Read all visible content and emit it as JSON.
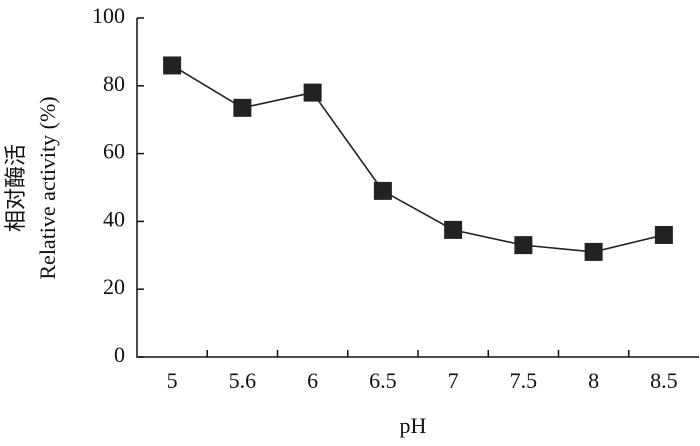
{
  "chart_data": {
    "type": "line",
    "xlabel": "pH",
    "ylabel": [
      "相对酶活",
      "Relative activity (%)"
    ],
    "categories": [
      "5",
      "5.6",
      "6",
      "6.5",
      "7",
      "7.5",
      "8",
      "8.5"
    ],
    "values": [
      86,
      73.5,
      78,
      49,
      37.5,
      33,
      31,
      36
    ],
    "color": "#222222",
    "ylim": [
      0,
      100
    ],
    "yticks": [
      0,
      20,
      40,
      60,
      80,
      100
    ]
  }
}
